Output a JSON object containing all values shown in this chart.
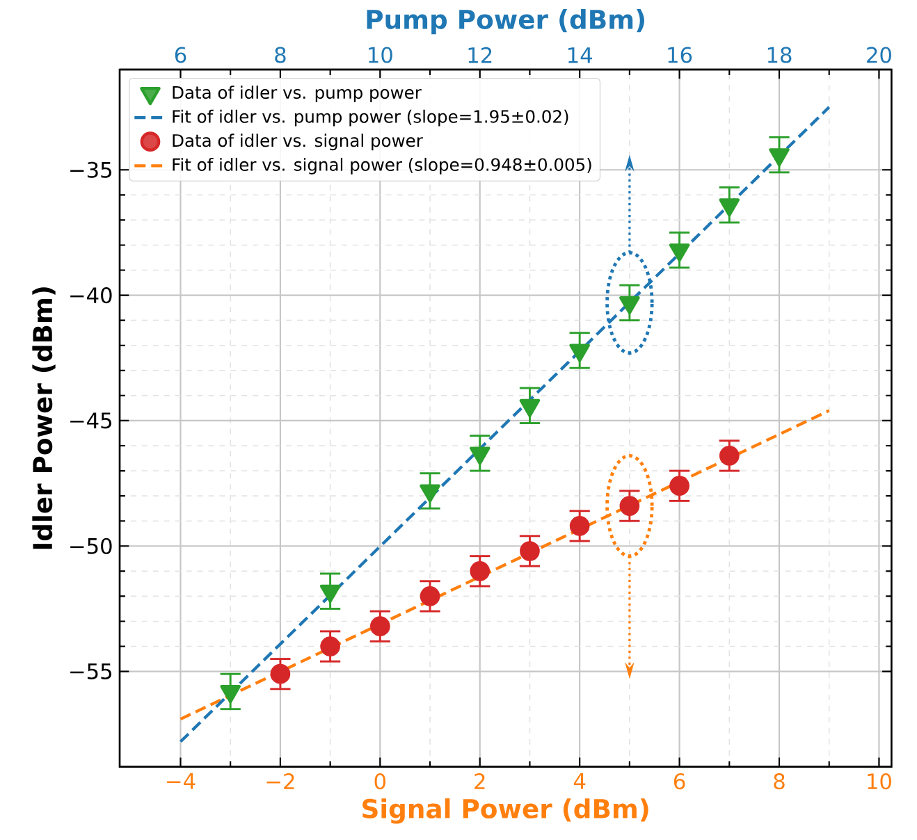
{
  "chart_data": {
    "type": "scatter",
    "xlabel": "Signal Power (dBm)",
    "x2label": "Pump Power (dBm)",
    "ylabel": "Idler Power (dBm)",
    "xlim": [
      -5.22,
      10.25
    ],
    "xticks": [
      {
        "value": -4,
        "label": "−4"
      },
      {
        "value": -2,
        "label": "−2"
      },
      0,
      2,
      4,
      6,
      8,
      10
    ],
    "x2lim": [
      4.78,
      20.25
    ],
    "x2ticks": [
      6,
      8,
      10,
      12,
      14,
      16,
      18,
      20
    ],
    "ylim": [
      -58.8,
      -31
    ],
    "yticks": [
      {
        "value": -55,
        "label": "−55"
      },
      {
        "value": -50,
        "label": "−50"
      },
      {
        "value": -45,
        "label": "−45"
      },
      {
        "value": -40,
        "label": "−40"
      },
      {
        "value": -35,
        "label": "−35"
      }
    ],
    "grid": true,
    "legend": "top left",
    "series": [
      {
        "name": "Data of idler vs. pump power",
        "axis": "x2",
        "marker": "triangle",
        "color": "#2ca02c",
        "x": [
          7,
          9,
          11,
          12,
          13,
          14,
          15,
          16,
          17,
          18
        ],
        "values": [
          -55.8,
          -51.8,
          -47.8,
          -46.3,
          -44.4,
          -42.2,
          -40.3,
          -38.2,
          -36.4,
          -34.4
        ],
        "errors": [
          0.7,
          0.7,
          0.7,
          0.7,
          0.7,
          0.7,
          0.7,
          0.7,
          0.7,
          0.7
        ]
      },
      {
        "name": "Fit of idler vs. pump power (slope=1.95±0.02)",
        "type": "line",
        "axis": "x2",
        "line_style": "dashed",
        "color": "#1f77b4",
        "x": [
          6,
          19
        ],
        "values": [
          -57.8,
          -32.5
        ]
      },
      {
        "name": "Data of idler vs. signal power",
        "marker": "circle",
        "color": "#d62728",
        "x": [
          -2,
          -1,
          0,
          1,
          2,
          3,
          4,
          5,
          6,
          7
        ],
        "values": [
          -55.1,
          -54.0,
          -53.2,
          -52.0,
          -51.0,
          -50.2,
          -49.2,
          -48.4,
          -47.6,
          -46.4
        ],
        "errors": [
          0.6,
          0.6,
          0.6,
          0.6,
          0.6,
          0.6,
          0.6,
          0.6,
          0.6,
          0.6
        ]
      },
      {
        "name": "Fit of idler vs. signal power (slope=0.948±0.005)",
        "type": "line",
        "line_style": "dashed",
        "color": "#ff7f0e",
        "x": [
          -4,
          9
        ],
        "values": [
          -56.9,
          -44.6
        ]
      }
    ]
  }
}
